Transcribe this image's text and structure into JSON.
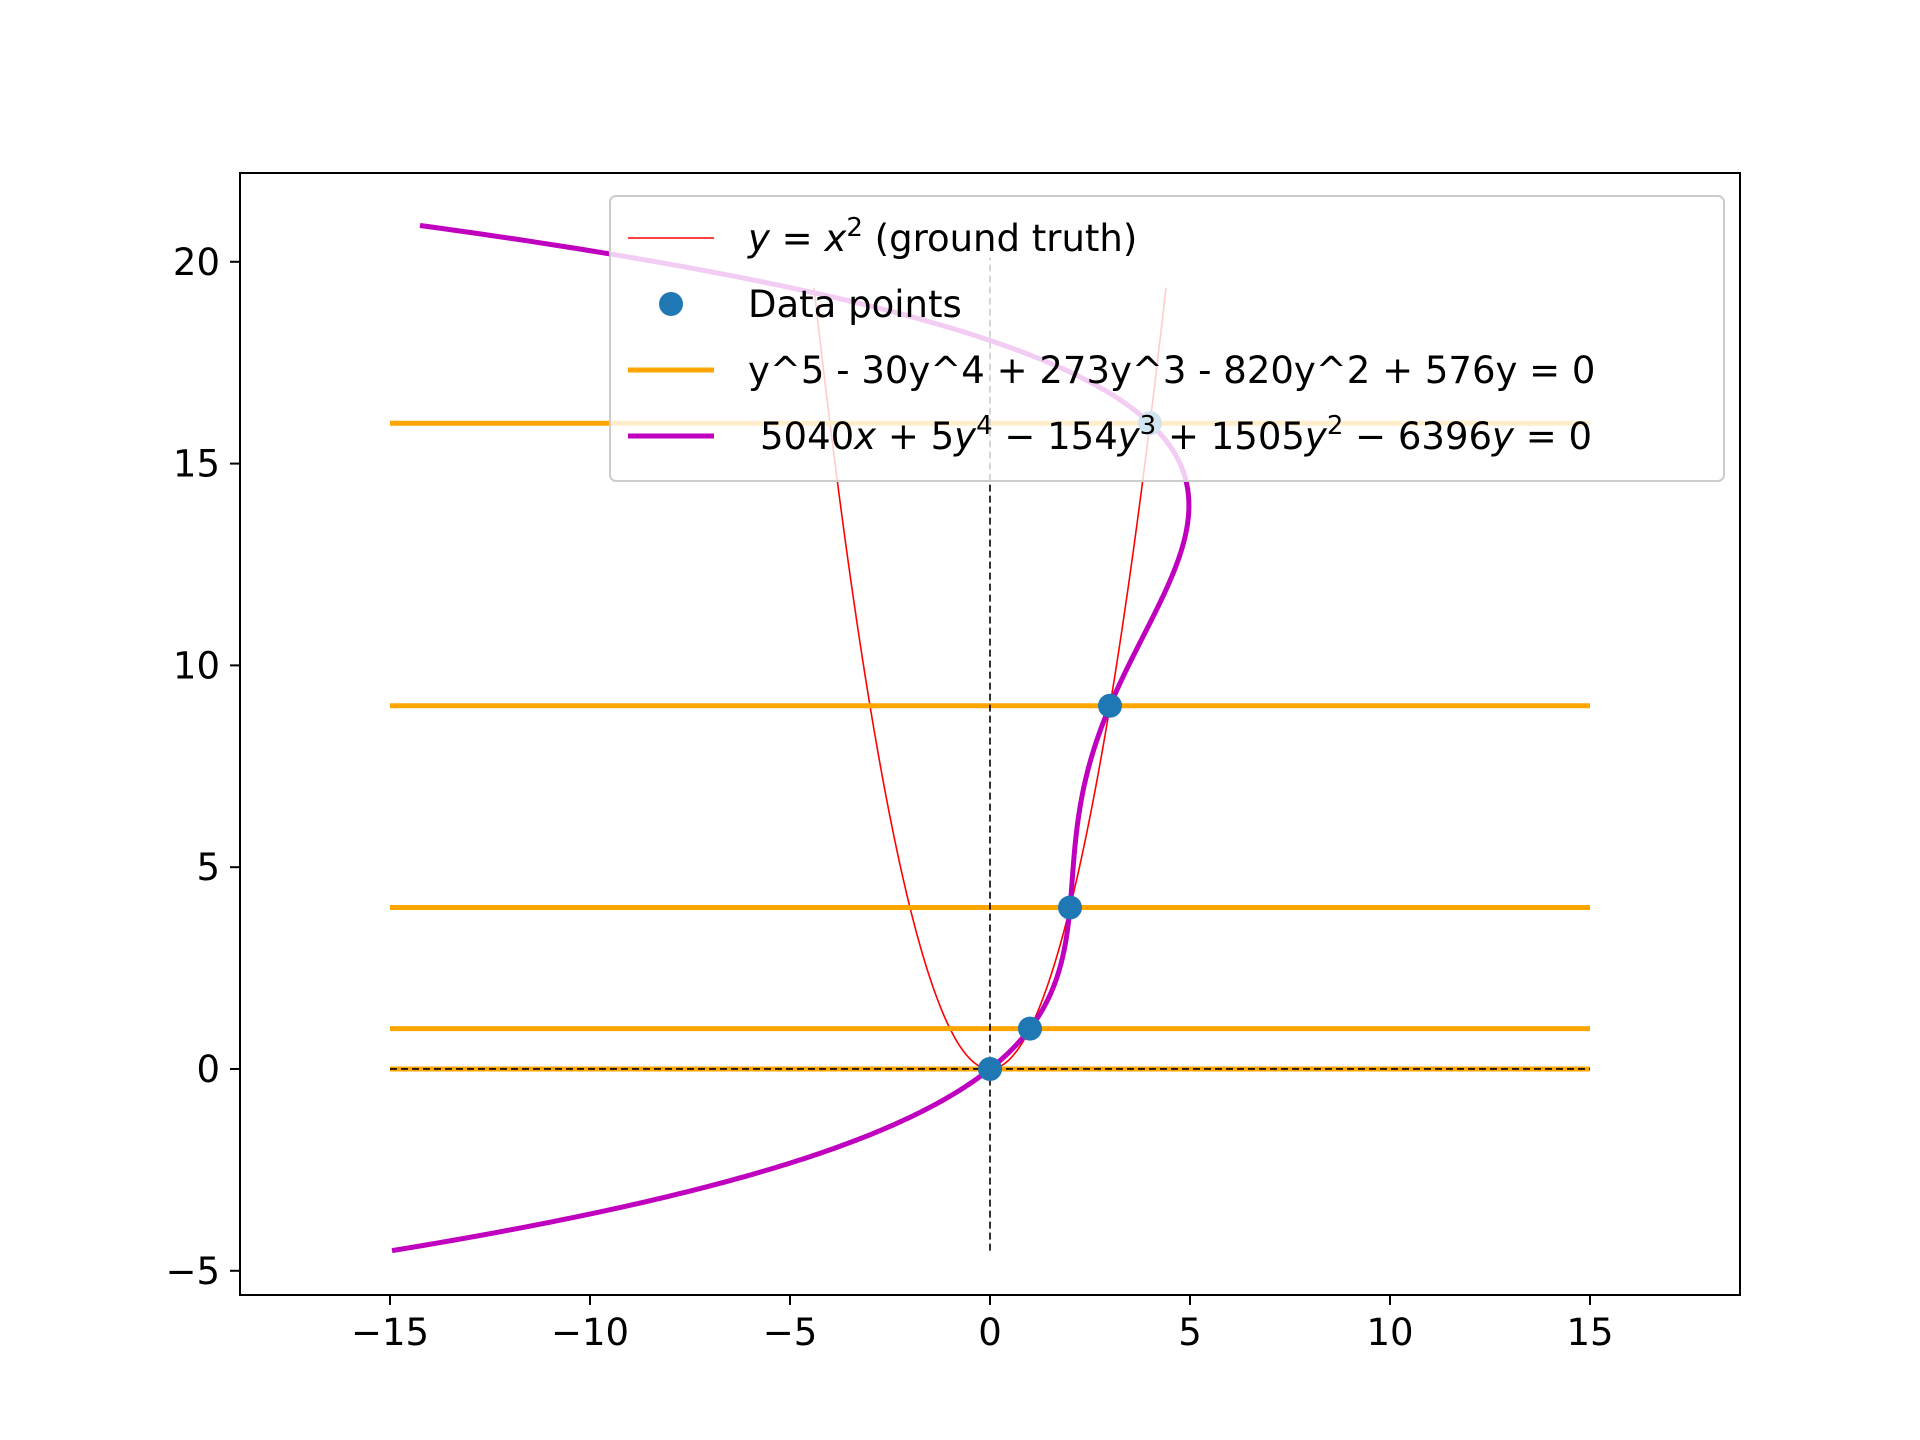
{
  "chart_data": {
    "type": "line",
    "title": "",
    "xlabel": "",
    "ylabel": "",
    "xlim": [
      -18.75,
      18.75
    ],
    "ylim": [
      -5.6,
      22.2
    ],
    "x_ticks": [
      -15,
      -10,
      -5,
      0,
      5,
      10,
      15
    ],
    "x_tick_labels": [
      "−15",
      "−10",
      "−5",
      "0",
      "5",
      "10",
      "15"
    ],
    "y_ticks": [
      -5,
      0,
      5,
      10,
      15,
      20
    ],
    "y_tick_labels": [
      "−5",
      "0",
      "5",
      "10",
      "15",
      "20"
    ],
    "grid": false,
    "legend_position": "top-right",
    "colors": {
      "ground_truth": "#ff0000",
      "data_points": "#1f77b4",
      "roots": "#ffa500",
      "fit": "#bf00bf",
      "guide": "#000000"
    },
    "series": [
      {
        "name": "y = x^2 (ground truth)",
        "kind": "line",
        "function": "y = x^2",
        "x_range": [
          -4.4,
          4.4
        ]
      },
      {
        "name": "Data points",
        "kind": "scatter",
        "points": [
          [
            0,
            0
          ],
          [
            1,
            1
          ],
          [
            2,
            4
          ],
          [
            3,
            9
          ],
          [
            4,
            16
          ]
        ]
      },
      {
        "name": "y^5 - 30y^4 + 273y^3 - 820y^2 + 576y = 0",
        "kind": "hlines",
        "y_values": [
          0,
          1,
          4,
          9,
          16
        ],
        "x_range": [
          -15,
          15
        ]
      },
      {
        "name": "5040x + 5y^4 - 154y^3 + 1505y^2 - 6396y = 0",
        "kind": "implicit",
        "coefficients": {
          "x": 5040,
          "y4": 5,
          "y3": -154,
          "y2": 1505,
          "y1": -6396
        },
        "y_range": [
          -4.5,
          20.9
        ]
      }
    ],
    "guide_lines": [
      {
        "orientation": "vertical",
        "at": 0,
        "range": [
          -4.5,
          20.1
        ]
      },
      {
        "orientation": "horizontal",
        "at": 0,
        "range": [
          -15,
          15
        ]
      }
    ],
    "legend": {
      "entries": [
        {
          "id": "ground_truth",
          "text": [
            {
              "t": "y",
              "i": true
            },
            {
              "t": " = ",
              "i": false
            },
            {
              "t": "x",
              "i": true
            },
            {
              "t": "2",
              "sup": true
            },
            {
              "t": " (ground truth)",
              "i": false
            }
          ]
        },
        {
          "id": "data_points",
          "text": [
            {
              "t": "Data points",
              "i": false
            }
          ]
        },
        {
          "id": "roots",
          "text": [
            {
              "t": "y^5 - 30y^4 + 273y^3 - 820y^2 + 576y = 0",
              "i": false
            }
          ]
        },
        {
          "id": "fit",
          "text": [
            {
              "t": "5040",
              "i": false
            },
            {
              "t": "x",
              "i": true
            },
            {
              "t": " + 5",
              "i": false
            },
            {
              "t": "y",
              "i": true
            },
            {
              "t": "4",
              "sup": true
            },
            {
              "t": " − 154",
              "i": false
            },
            {
              "t": "y",
              "i": true
            },
            {
              "t": "3",
              "sup": true
            },
            {
              "t": " + 1505",
              "i": false
            },
            {
              "t": "y",
              "i": true
            },
            {
              "t": "2",
              "sup": true
            },
            {
              "t": " − 6396",
              "i": false
            },
            {
              "t": "y",
              "i": true
            },
            {
              "t": " = 0",
              "i": false
            }
          ]
        }
      ]
    }
  }
}
